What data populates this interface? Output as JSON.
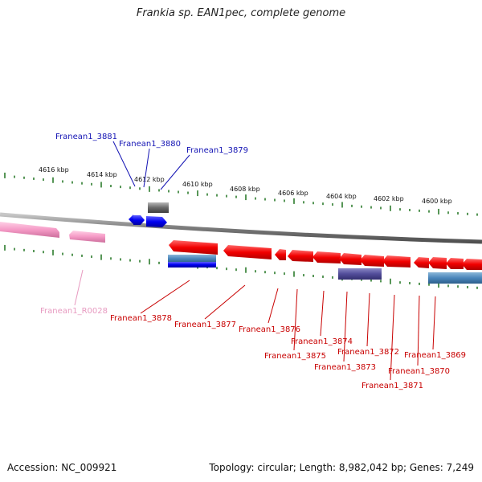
{
  "title": "Frankia sp. EAN1pec, complete genome",
  "footer": {
    "accession": "Accession: NC_009921",
    "summary": "Topology: circular; Length: 8,982,042 bp; Genes: 7,249"
  },
  "colors": {
    "backbone": "#8a8a8a",
    "ticks": "#2e7d2e",
    "upper_labels": "#1414b4",
    "lower_labels": "#c80000",
    "rna_label": "#e79ac0"
  },
  "scale_labels": [
    "4616 kbp",
    "4614 kbp",
    "4612 kbp",
    "4610 kbp",
    "4608 kbp",
    "4606 kbp",
    "4604 kbp",
    "4602 kbp",
    "4600 kbp"
  ],
  "gene_labels_upper": [
    "Franean1_3881",
    "Franean1_3880",
    "Franean1_3879"
  ],
  "gene_labels_lower": [
    "Franean1_3878",
    "Franean1_3877",
    "Franean1_3876",
    "Franean1_3875",
    "Franean1_3874",
    "Franean1_3873",
    "Franean1_3872",
    "Franean1_3871",
    "Franean1_3870",
    "Franean1_3869"
  ],
  "rna_labels": [
    "Franean1_R0028"
  ]
}
